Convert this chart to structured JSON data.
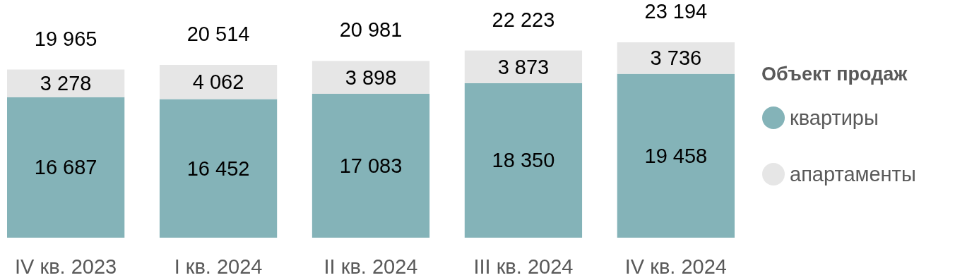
{
  "chart_data": {
    "type": "bar",
    "stacked": true,
    "categories": [
      "IV кв. 2023",
      "I кв. 2024",
      "II кв. 2024",
      "III кв. 2024",
      "IV кв. 2024"
    ],
    "series": [
      {
        "name": "квартиры",
        "color": "#84b3b8",
        "values": [
          16687,
          16452,
          17083,
          18350,
          19458
        ]
      },
      {
        "name": "апартаменты",
        "color": "#e6e6e6",
        "values": [
          3278,
          4062,
          3898,
          3873,
          3736
        ]
      }
    ],
    "totals": [
      "19 965",
      "20 514",
      "20 981",
      "22 223",
      "23 194"
    ],
    "data_labels": true,
    "legend": "right",
    "legend_title": "Объект продаж"
  }
}
